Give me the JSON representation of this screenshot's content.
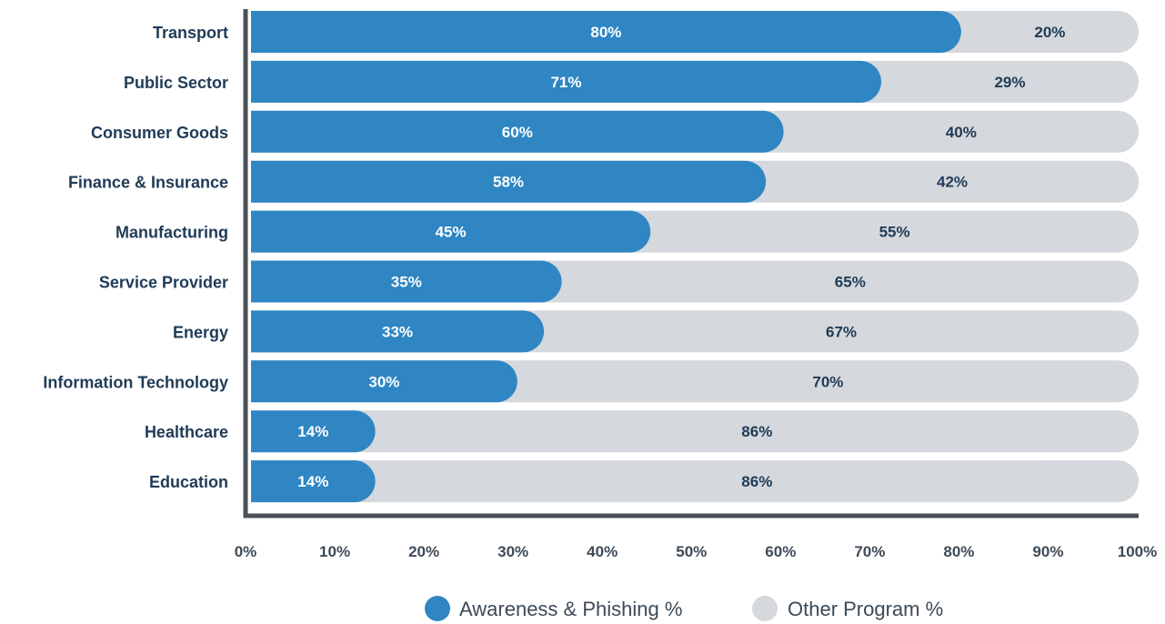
{
  "chart_data": {
    "type": "bar",
    "orientation": "horizontal",
    "stacked": true,
    "categories": [
      "Transport",
      "Public Sector",
      "Consumer Goods",
      "Finance & Insurance",
      "Manufacturing",
      "Service Provider",
      "Energy",
      "Information Technology",
      "Healthcare",
      "Education"
    ],
    "series": [
      {
        "name": "Awareness & Phishing %",
        "color": "#2f86c3",
        "values": [
          80,
          71,
          60,
          58,
          45,
          35,
          33,
          30,
          14,
          14
        ],
        "labels": [
          "80%",
          "71%",
          "60%",
          "58%",
          "45%",
          "35%",
          "33%",
          "30%",
          "14%",
          "14%"
        ]
      },
      {
        "name": "Other Program %",
        "color": "#d5d8dc",
        "values": [
          20,
          29,
          40,
          42,
          55,
          65,
          67,
          70,
          86,
          86
        ],
        "labels": [
          "20%",
          "29%",
          "40%",
          "42%",
          "55%",
          "65%",
          "67%",
          "70%",
          "86%",
          "86%"
        ]
      }
    ],
    "xlim": [
      0,
      100
    ],
    "x_ticks": [
      0,
      10,
      20,
      30,
      40,
      50,
      60,
      70,
      80,
      90,
      100
    ],
    "x_tick_labels": [
      "0%",
      "10%",
      "20%",
      "30%",
      "40%",
      "50%",
      "60%",
      "70%",
      "80%",
      "90%",
      "100%"
    ],
    "legend_position": "bottom-center",
    "grid": false,
    "axis_color": "#4a5159"
  }
}
